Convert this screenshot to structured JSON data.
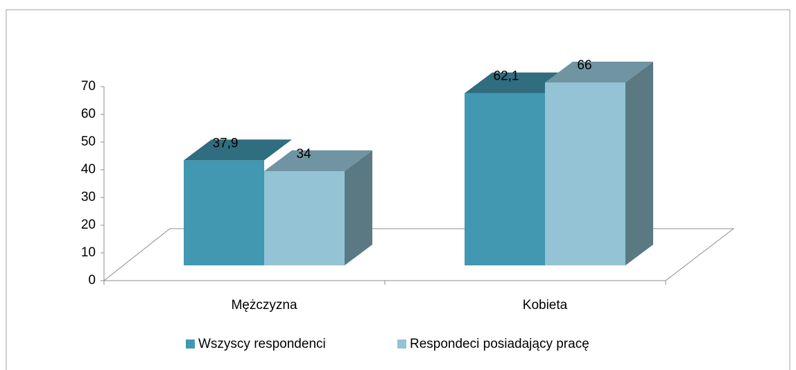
{
  "chart_data": {
    "type": "bar3d",
    "categories": [
      "Mężczyzna",
      "Kobieta"
    ],
    "series": [
      {
        "name": "Wszyscy respondenci",
        "color": "#4198b0",
        "values": [
          37.9,
          62.1
        ],
        "value_labels": [
          "37,9",
          "62,1"
        ]
      },
      {
        "name": "Respondeci posiadający pracę",
        "color": "#93c3d4",
        "values": [
          34,
          66
        ],
        "value_labels": [
          "34",
          "66"
        ]
      }
    ],
    "ylim": [
      0,
      70
    ],
    "yticks": [
      0,
      10,
      20,
      30,
      40,
      50,
      60,
      70
    ]
  }
}
